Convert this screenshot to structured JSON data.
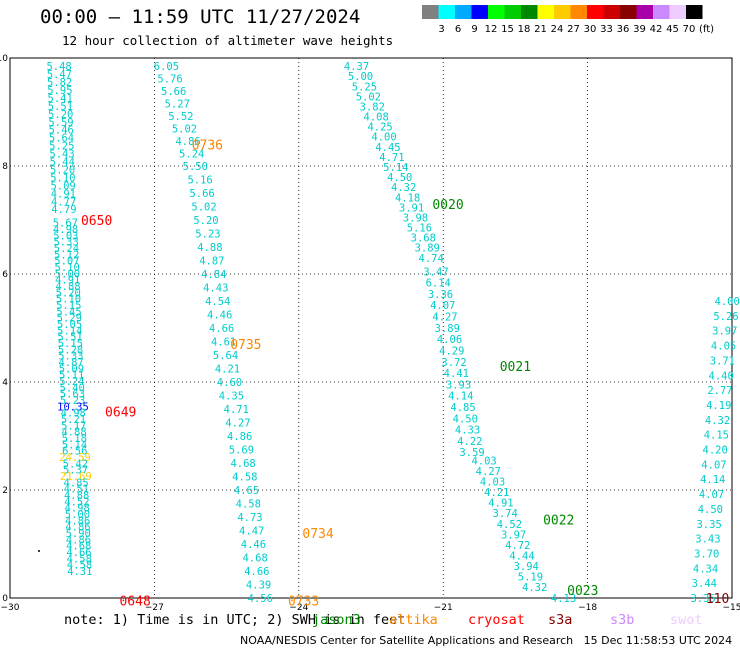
{
  "header": {
    "title": "00:00 – 11:59 UTC 11/27/2024",
    "subtitle": "12 hour collection of altimeter wave heights"
  },
  "colorbar": {
    "unit": "(ft)",
    "ticks": [
      "3",
      "6",
      "9",
      "12",
      "15",
      "18",
      "21",
      "24",
      "27",
      "30",
      "33",
      "36",
      "39",
      "42",
      "45",
      "70"
    ],
    "colors": [
      "#808080",
      "#00ffff",
      "#00aaff",
      "#0000ff",
      "#00ff00",
      "#00cc00",
      "#008800",
      "#ffff00",
      "#ffcc00",
      "#ff8800",
      "#ff0000",
      "#cc0000",
      "#880000",
      "#aa00aa",
      "#cc88ff",
      "#eeccff",
      "#000000"
    ]
  },
  "footer": {
    "note": "note: 1) Time is in UTC; 2) SWH is in feet",
    "credit": "NOAA/NESDIS Center for Satellite Applications and Research",
    "timestamp": "15 Dec 11:58:53 UTC 2024"
  },
  "missions": [
    {
      "name": "jason3",
      "color": "#008800"
    },
    {
      "name": "altika",
      "color": "#ff8800"
    },
    {
      "name": "cryosat",
      "color": "#ff0000"
    },
    {
      "name": "s3a",
      "color": "#880000"
    },
    {
      "name": "s3b",
      "color": "#cc88ff"
    },
    {
      "name": "swot",
      "color": "#eeccff"
    }
  ],
  "chart_data": {
    "type": "scatter",
    "xlim": [
      -30,
      -15
    ],
    "ylim": [
      0,
      10
    ],
    "xticks": [
      -30,
      -27,
      -24,
      -21,
      -18,
      -15
    ],
    "xtick_labels": [
      "−30",
      "−27",
      "−24",
      "−21",
      "−18",
      "−15"
    ],
    "yticks": [
      0,
      2,
      4,
      6,
      8,
      10
    ],
    "grid": true,
    "passes": [
      {
        "label": "0650",
        "color": "#ff0000",
        "label_pos": [
          -28.2,
          7.0
        ],
        "start": [
          -28.98,
          9.85
        ],
        "end": [
          -28.88,
          7.2
        ],
        "values": [
          "5.48",
          "5.47",
          "5.82",
          "5.95",
          "5.41",
          "5.51",
          "5.20",
          "5.59",
          "5.46",
          "5.64",
          "5.25",
          "5.43",
          "5.44",
          "5.20",
          "5.10",
          "5.09",
          "4.91",
          "4.77",
          "4.79"
        ]
      },
      {
        "label": "0649",
        "color": "#ff0000",
        "label_pos": [
          -27.7,
          3.45
        ],
        "start": [
          -28.85,
          6.95
        ],
        "end": [
          -28.55,
          0.5
        ],
        "values": [
          "5.67",
          "4.98",
          "5.03",
          "5.33",
          "5.24",
          "5.12",
          "5.07",
          "5.10",
          "5.00",
          "4.91",
          "4.88",
          "5.20",
          "5.10",
          "5.15",
          "5.45",
          "5.29",
          "5.05",
          "5.14",
          "5.51",
          "5.15",
          "5.28",
          "5.33",
          "4.87",
          "5.09",
          "5.11",
          "5.24",
          "5.40",
          "5.63",
          "5.23",
          "10.35",
          "4.98",
          "5.21",
          "5.17",
          "4.88",
          "5.18",
          "5.14",
          "6.56",
          "24.59",
          "5.42",
          "5.37",
          "21.69",
          "4.85",
          "4.51",
          "4.88",
          "4.52",
          "4.98",
          "5.00",
          "4.86",
          "4.86",
          "5.90",
          "4.86",
          "4.68",
          "4.66",
          "4.58",
          "4.58",
          "4.31"
        ]
      },
      {
        "label": "0648",
        "color": "#ff0000",
        "label_pos": [
          -27.4,
          -0.05
        ],
        "start": [
          -27.6,
          0.0
        ],
        "end": [
          -27.6,
          0.0
        ],
        "values": []
      },
      {
        "label": "0736",
        "color": "#ff8800",
        "label_pos": [
          -25.9,
          8.4
        ],
        "start": [
          -26.75,
          9.85
        ],
        "end": [
          -26.15,
          8.0
        ],
        "values": [
          "6.05",
          "5.76",
          "5.66",
          "5.27",
          "5.52",
          "5.02",
          "4.86",
          "5.24",
          "5.50"
        ]
      },
      {
        "label": "0735",
        "color": "#ff8800",
        "label_pos": [
          -25.1,
          4.7
        ],
        "start": [
          -26.05,
          7.75
        ],
        "end": [
          -25.4,
          3.75
        ],
        "values": [
          "5.16",
          "5.66",
          "5.02",
          "5.20",
          "5.23",
          "4.88",
          "4.87",
          "4.84",
          "4.43",
          "4.54",
          "4.46",
          "4.66",
          "4.61",
          "5.64",
          "4.21",
          "4.60",
          "4.35"
        ]
      },
      {
        "label": "0734",
        "color": "#ff8800",
        "label_pos": [
          -23.6,
          1.2
        ],
        "start": [
          -25.3,
          3.5
        ],
        "end": [
          -24.8,
          0.0
        ],
        "values": [
          "4.71",
          "4.27",
          "4.86",
          "5.69",
          "4.68",
          "4.58",
          "4.65",
          "4.58",
          "4.73",
          "4.47",
          "4.46",
          "4.68",
          "4.66",
          "4.39",
          "4.56"
        ]
      },
      {
        "label": "0733",
        "color": "#ff8800",
        "label_pos": [
          -23.9,
          -0.05
        ],
        "start": [
          -24.2,
          0.0
        ],
        "end": [
          -24.2,
          0.0
        ],
        "values": []
      },
      {
        "label": "0020",
        "color": "#008800",
        "label_pos": [
          -20.9,
          7.3
        ],
        "start": [
          -22.8,
          9.85
        ],
        "end": [
          -21.25,
          6.3
        ],
        "values": [
          "4.37",
          "5.00",
          "5.25",
          "5.02",
          "3.82",
          "4.08",
          "4.25",
          "4.00",
          "4.45",
          "4.71",
          "5.14",
          "4.50",
          "4.32",
          "4.18",
          "3.91",
          "3.98",
          "5.16",
          "3.68",
          "3.89",
          "4.74"
        ]
      },
      {
        "label": "0021",
        "color": "#008800",
        "label_pos": [
          -19.5,
          4.3
        ],
        "start": [
          -21.15,
          6.05
        ],
        "end": [
          -20.4,
          2.7
        ],
        "values": [
          "3.47",
          "6.14",
          "3.36",
          "4.07",
          "4.27",
          "3.89",
          "4.06",
          "4.29",
          "3.72",
          "4.41",
          "3.93",
          "4.14",
          "4.85",
          "4.50",
          "4.33",
          "4.22",
          "3.59"
        ]
      },
      {
        "label": "0022",
        "color": "#008800",
        "label_pos": [
          -18.6,
          1.45
        ],
        "start": [
          -20.15,
          2.55
        ],
        "end": [
          -19.1,
          0.2
        ],
        "values": [
          "4.03",
          "4.27",
          "4.03",
          "4.21",
          "4.91",
          "3.74",
          "4.52",
          "3.97",
          "4.72",
          "4.44",
          "3.94",
          "5.19",
          "4.32"
        ]
      },
      {
        "label": "0023",
        "color": "#008800",
        "label_pos": [
          -18.1,
          0.15
        ],
        "start": [
          -18.5,
          0.0
        ],
        "end": [
          -18.5,
          0.0
        ],
        "values": [
          "4.13"
        ]
      },
      {
        "label": "110",
        "color": "#880000",
        "label_pos": [
          -15.3,
          0.0
        ],
        "start": [
          -15.1,
          5.5
        ],
        "end": [
          -15.6,
          0.0
        ],
        "values": [
          "4.00",
          "5.26",
          "3.97",
          "4.05",
          "3.71",
          "4.40",
          "2.77",
          "4.19",
          "4.32",
          "4.15",
          "4.20",
          "4.07",
          "4.14",
          "4.07",
          "4.50",
          "3.35",
          "3.43",
          "3.70",
          "4.34",
          "3.44",
          "3.35"
        ]
      }
    ]
  }
}
